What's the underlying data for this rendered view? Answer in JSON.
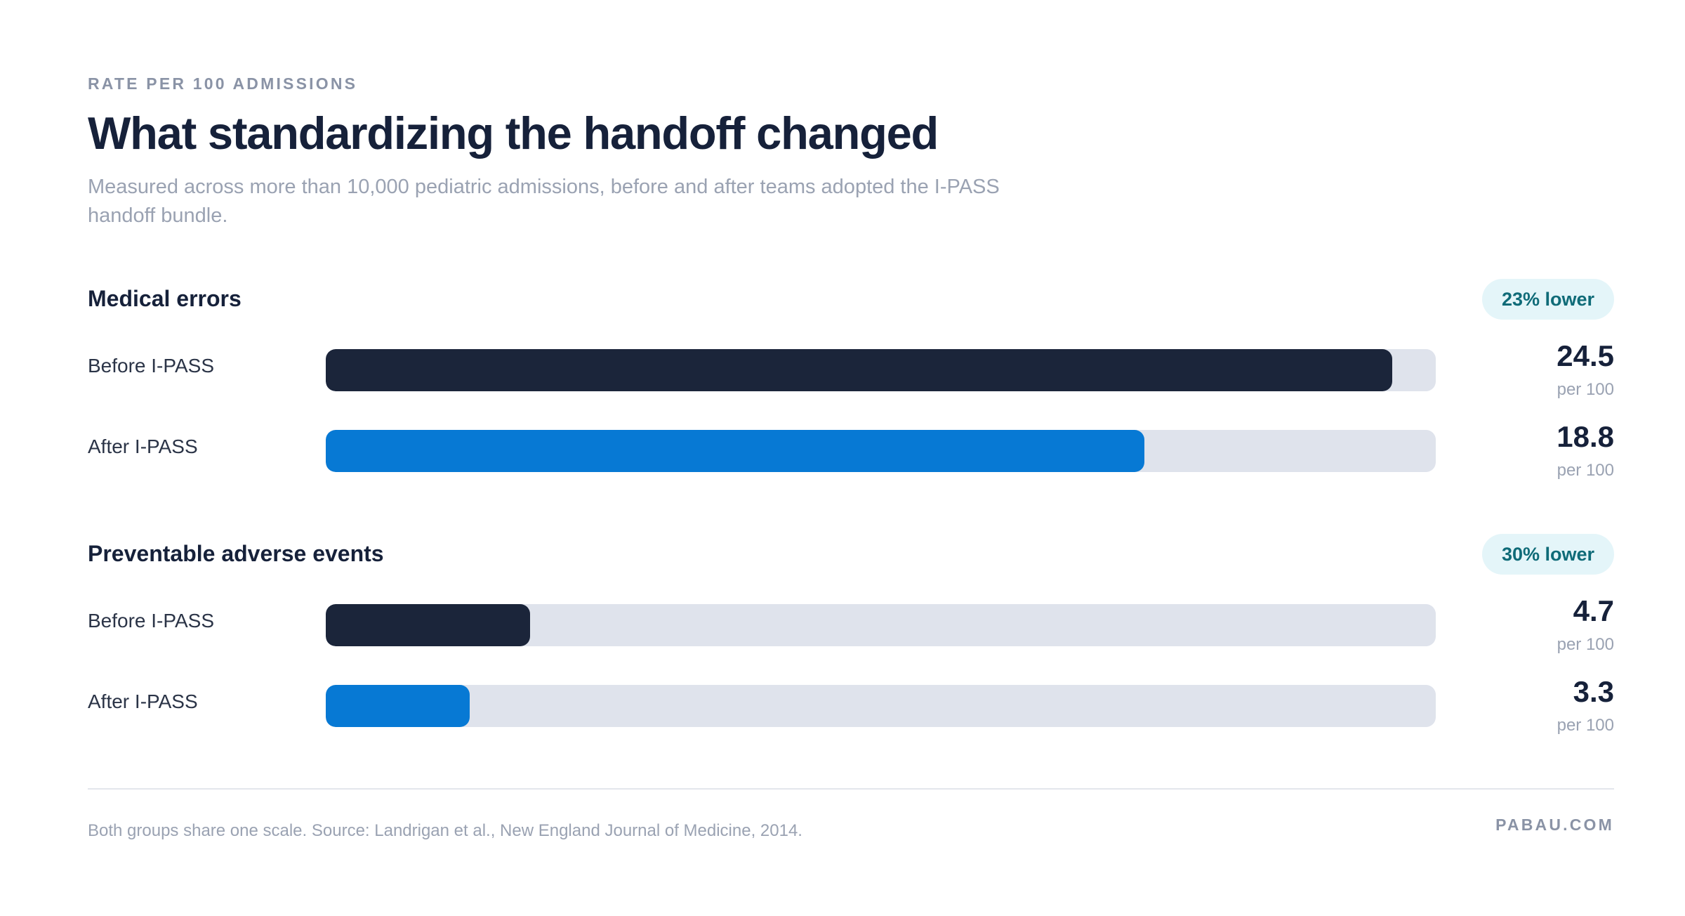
{
  "header": {
    "eyebrow": "RATE PER 100 ADMISSIONS",
    "title": "What standardizing the handoff changed",
    "subtitle": "Measured across more than 10,000 pediatric admissions, before and after teams adopted the I-PASS handoff bundle."
  },
  "colors": {
    "before": "#1b253a",
    "after": "#0779d4",
    "track": "#dfe3ec",
    "pill_bg": "#e4f5f9",
    "pill_text": "#0f6b78"
  },
  "chart_data": {
    "type": "bar",
    "orientation": "horizontal",
    "xlim": [
      0,
      25.5
    ],
    "shared_scale": true,
    "groups": [
      {
        "title": "Medical errors",
        "change": "23% lower",
        "bars": [
          {
            "label": "Before I-PASS",
            "value": 24.5,
            "value_label": "24.5",
            "unit": "per 100",
            "color_key": "before"
          },
          {
            "label": "After I-PASS",
            "value": 18.8,
            "value_label": "18.8",
            "unit": "per 100",
            "color_key": "after"
          }
        ]
      },
      {
        "title": "Preventable adverse events",
        "change": "30% lower",
        "bars": [
          {
            "label": "Before I-PASS",
            "value": 4.7,
            "value_label": "4.7",
            "unit": "per 100",
            "color_key": "before"
          },
          {
            "label": "After I-PASS",
            "value": 3.3,
            "value_label": "3.3",
            "unit": "per 100",
            "color_key": "after"
          }
        ]
      }
    ]
  },
  "footer": {
    "note": "Both groups share one scale. Source: Landrigan et al., New England Journal of Medicine, 2014.",
    "brand": "PABAU.COM"
  }
}
